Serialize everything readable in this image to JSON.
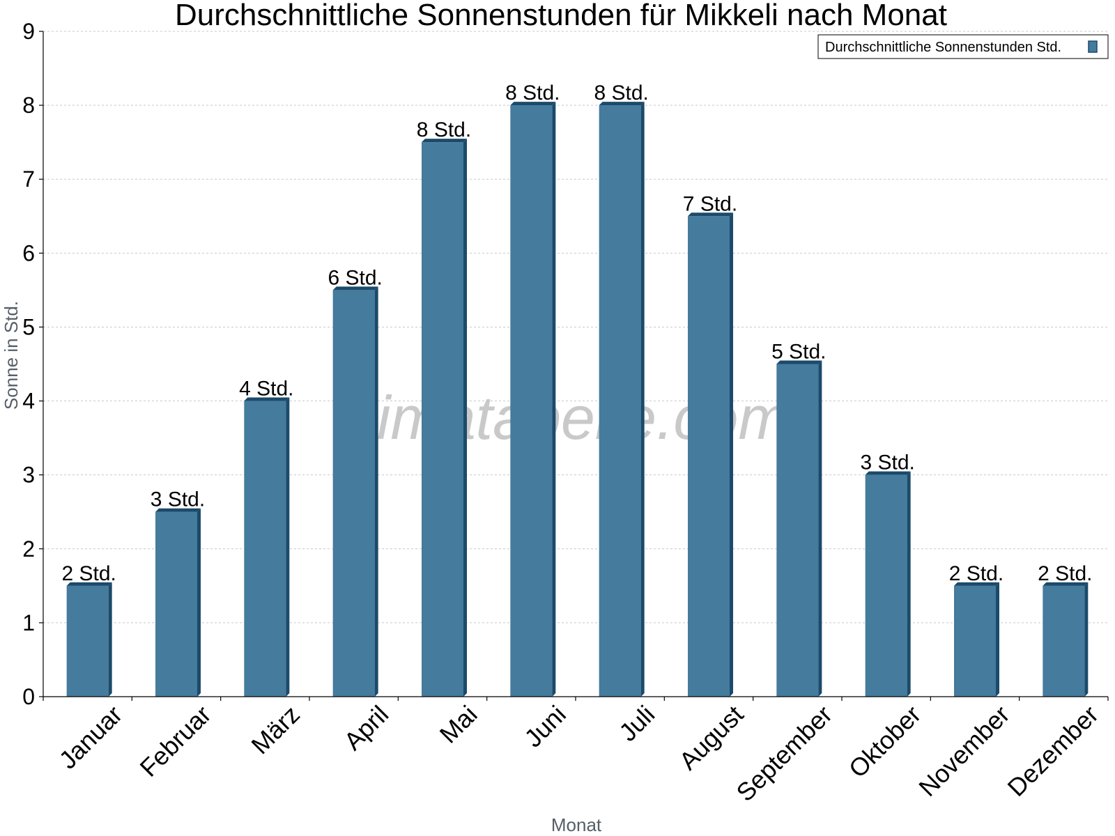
{
  "chart_data": {
    "type": "bar",
    "title": "Durchschnittliche Sonnenstunden für Mikkeli nach Monat",
    "xlabel": "Monat",
    "ylabel": "Sonne in Std.",
    "ylim": [
      0,
      9
    ],
    "yticks": [
      "0",
      "1",
      "2",
      "3",
      "4",
      "5",
      "6",
      "7",
      "8",
      "9"
    ],
    "grid": true,
    "legend_position": "top-right",
    "categories": [
      "Januar",
      "Februar",
      "März",
      "April",
      "Mai",
      "Juni",
      "Juli",
      "August",
      "September",
      "Oktober",
      "November",
      "Dezember"
    ],
    "series": [
      {
        "name": "Durchschnittliche Sonnenstunden Std.",
        "values": [
          1.5,
          2.5,
          4,
          5.5,
          7.5,
          8,
          8,
          6.5,
          4.5,
          3,
          1.5,
          1.5
        ],
        "labels": [
          "2 Std.",
          "3 Std.",
          "4 Std.",
          "6 Std.",
          "8 Std.",
          "8 Std.",
          "8 Std.",
          "7 Std.",
          "5 Std.",
          "3 Std.",
          "2 Std.",
          "2 Std."
        ],
        "color": "#457b9d",
        "edge_color": "#1b4a6b"
      }
    ]
  },
  "watermark": "klimatabelle.com"
}
